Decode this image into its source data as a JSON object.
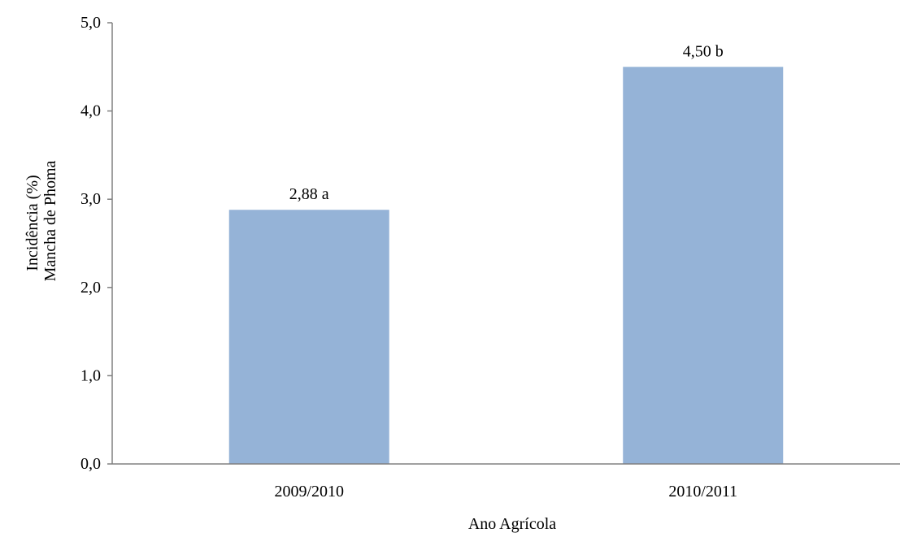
{
  "chart_data": {
    "type": "bar",
    "categories": [
      "2009/2010",
      "2010/2011"
    ],
    "values": [
      2.88,
      4.5
    ],
    "data_labels": [
      "2,88 a",
      "4,50 b"
    ],
    "title": "",
    "xlabel": "Ano Agrícola",
    "ylabel_lines": [
      "Incidência (%)",
      "Mancha de Phoma"
    ],
    "ylim": [
      0,
      5
    ],
    "yticks": [
      0,
      1,
      2,
      3,
      4,
      5
    ],
    "ytick_labels": [
      "0,0",
      "1,0",
      "2,0",
      "3,0",
      "4,0",
      "5,0"
    ],
    "grid": false,
    "legend": "none",
    "bar_color": "#95B3D7",
    "axis_color": "#808080"
  }
}
